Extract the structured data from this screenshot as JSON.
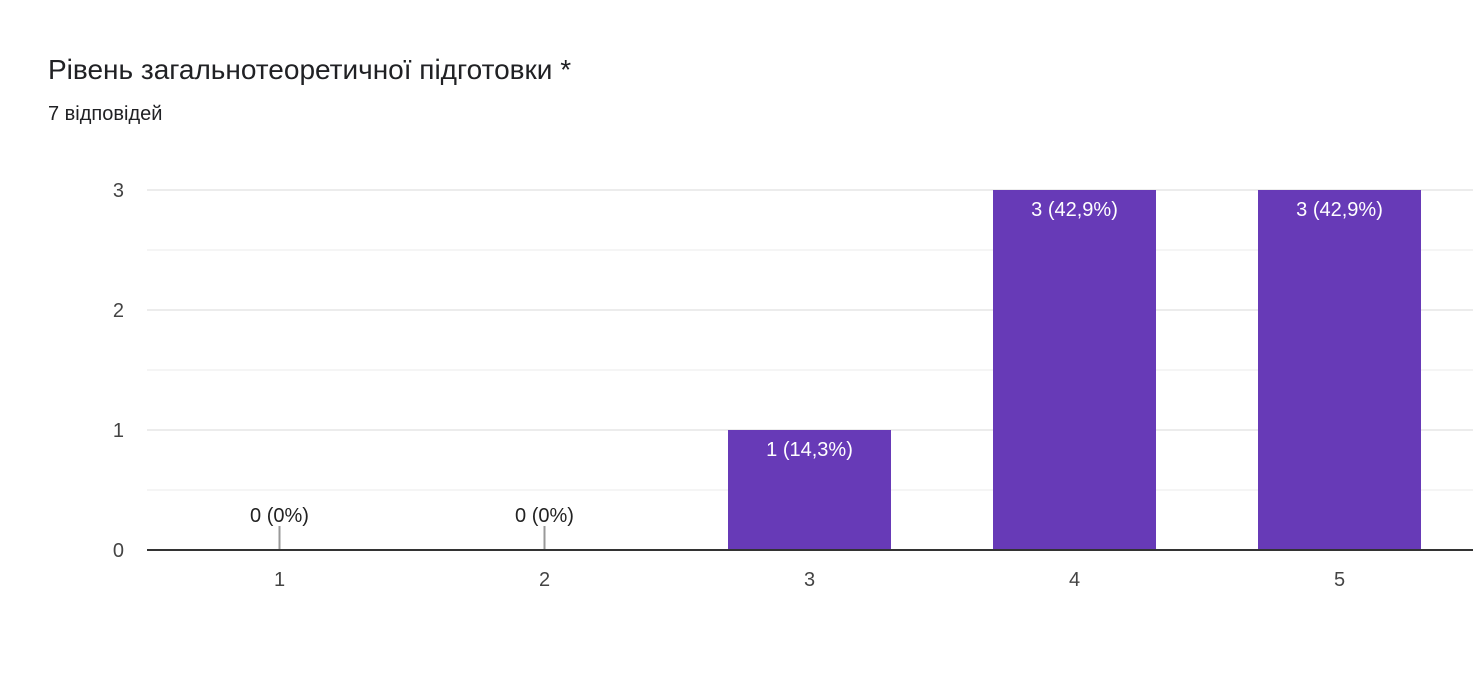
{
  "question": {
    "title": "Рівень загальнотеоретичної підготовки *",
    "responses": "7 відповідей"
  },
  "colors": {
    "bar": "#673ab7",
    "grid": "#e6e6e6",
    "axis": "#333333",
    "zero_marker": "#999999"
  },
  "chart_data": {
    "type": "bar",
    "title": "",
    "xlabel": "",
    "ylabel": "",
    "categories": [
      "1",
      "2",
      "3",
      "4",
      "5"
    ],
    "values": [
      0,
      0,
      1,
      3,
      3
    ],
    "data_labels": [
      "0 (0%)",
      "0 (0%)",
      "1 (14,3%)",
      "3 (42,9%)",
      "3 (42,9%)"
    ],
    "ylim": [
      0,
      3
    ],
    "y_ticks": [
      "0",
      "1",
      "2",
      "3"
    ],
    "grid": true,
    "legend": "none"
  }
}
